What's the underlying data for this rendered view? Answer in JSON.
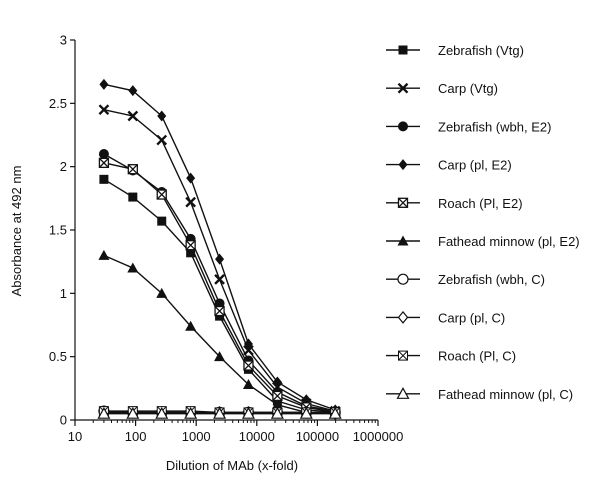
{
  "chart_data": {
    "type": "line",
    "xlabel": "Dilution of MAb (x-fold)",
    "ylabel": "Absorbance at  492 nm",
    "x_scale": "log",
    "xlim": [
      10,
      1000000
    ],
    "ylim": [
      0,
      3
    ],
    "x_ticks": [
      10,
      100,
      1000,
      10000,
      100000,
      1000000
    ],
    "x_tick_labels": [
      "10",
      "100",
      "1000",
      "10000",
      "100000",
      "1000000"
    ],
    "y_ticks": [
      0,
      0.5,
      1,
      1.5,
      2,
      2.5,
      3
    ],
    "y_tick_labels": [
      "0",
      "0.5",
      "1",
      "1.5",
      "2",
      "2.5",
      "3"
    ],
    "grid": false,
    "legend_position": "right",
    "x": [
      30,
      90,
      270,
      810,
      2430,
      7290,
      21870,
      65610,
      196830
    ],
    "series": [
      {
        "name": "Zebrafish (Vtg)",
        "marker": "square-filled",
        "values": [
          1.9,
          1.76,
          1.57,
          1.32,
          0.82,
          0.4,
          0.15,
          0.08,
          0.06
        ]
      },
      {
        "name": "Carp (Vtg)",
        "marker": "x",
        "values": [
          2.45,
          2.4,
          2.21,
          1.72,
          1.11,
          0.55,
          0.26,
          0.13,
          0.07
        ]
      },
      {
        "name": "Zebrafish (wbh, E2)",
        "marker": "circle-filled",
        "values": [
          2.1,
          1.97,
          1.8,
          1.43,
          0.92,
          0.47,
          0.22,
          0.11,
          0.07
        ]
      },
      {
        "name": "Carp (pl, E2)",
        "marker": "diamond-filled",
        "values": [
          2.65,
          2.6,
          2.4,
          1.91,
          1.27,
          0.6,
          0.3,
          0.16,
          0.08
        ]
      },
      {
        "name": "Roach (Pl, E2)",
        "marker": "square-x",
        "values": [
          2.03,
          1.98,
          1.78,
          1.38,
          0.86,
          0.43,
          0.19,
          0.1,
          0.06
        ]
      },
      {
        "name": "Fathead minnow (pl, E2)",
        "marker": "triangle-filled",
        "values": [
          1.3,
          1.2,
          1.0,
          0.74,
          0.5,
          0.28,
          0.12,
          0.06,
          0.05
        ]
      },
      {
        "name": "Zebrafish (wbh, C)",
        "marker": "circle-open",
        "values": [
          0.07,
          0.06,
          0.06,
          0.06,
          0.06,
          0.06,
          0.06,
          0.06,
          0.06
        ]
      },
      {
        "name": "Carp (pl, C)",
        "marker": "diamond-open",
        "values": [
          0.06,
          0.06,
          0.06,
          0.06,
          0.06,
          0.06,
          0.06,
          0.06,
          0.05
        ]
      },
      {
        "name": "Roach (Pl, C)",
        "marker": "square-x-open",
        "values": [
          0.07,
          0.07,
          0.07,
          0.07,
          0.06,
          0.06,
          0.06,
          0.06,
          0.06
        ]
      },
      {
        "name": "Fathead minnow (pl, C)",
        "marker": "triangle-open",
        "values": [
          0.05,
          0.05,
          0.05,
          0.05,
          0.05,
          0.05,
          0.05,
          0.05,
          0.05
        ]
      }
    ]
  }
}
